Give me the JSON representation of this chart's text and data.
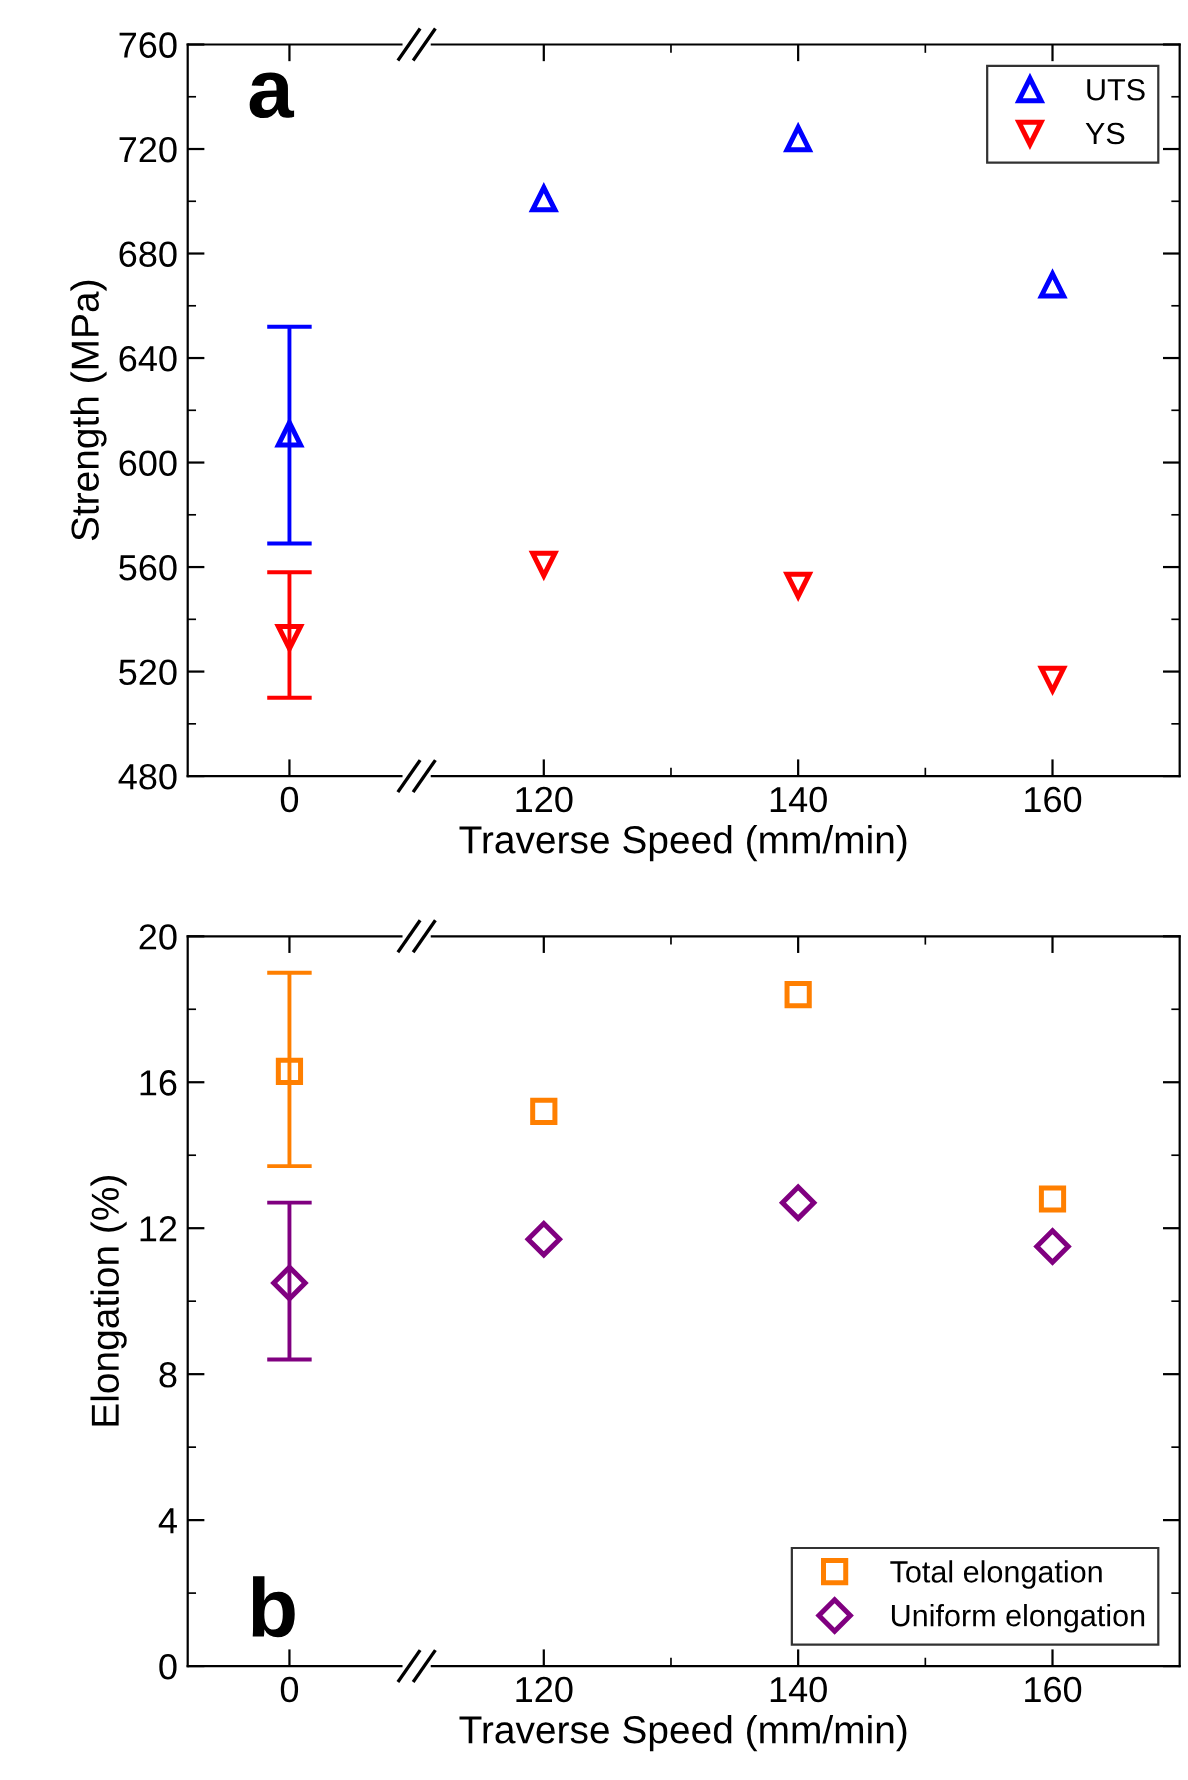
{
  "chart_data": [
    {
      "type": "scatter",
      "xlabel": "Traverse Speed (mm/min)",
      "ylabel": "Strength (MPa)",
      "categories": [
        "0",
        "120",
        "140",
        "160"
      ],
      "ylim": [
        480,
        760
      ],
      "yticks": [
        480,
        520,
        560,
        600,
        640,
        680,
        720,
        760
      ],
      "legend": "top right",
      "annotations": [
        "a"
      ],
      "series": [
        {
          "name": "UTS",
          "color": "#0000ff",
          "marker": "triangle",
          "values": [
            611,
            701,
            724,
            668
          ],
          "errors": [
            [
              569,
              652
            ],
            null,
            null,
            null
          ]
        },
        {
          "name": "YS",
          "color": "#ff0000",
          "marker": "triangle_down",
          "values": [
            533,
            561,
            553,
            517
          ],
          "errors": [
            [
              510,
              558
            ],
            null,
            null,
            null
          ]
        }
      ]
    },
    {
      "type": "scatter",
      "xlabel": "Traverse Speed (mm/min)",
      "ylabel": "Elongation (%)",
      "categories": [
        "0",
        "120",
        "140",
        "160"
      ],
      "ylim": [
        0,
        20
      ],
      "yticks": [
        0,
        4,
        8,
        12,
        16,
        20
      ],
      "legend": "bottom right",
      "annotations": [
        "b"
      ],
      "series": [
        {
          "name": "Total elongation",
          "color": "#ff7f00",
          "marker": "square",
          "values": [
            16.3,
            15.2,
            18.4,
            12.8
          ],
          "errors": [
            [
              13.7,
              19.0
            ],
            null,
            null,
            null
          ]
        },
        {
          "name": "Uniform elongation",
          "color": "#800080",
          "marker": "diamond",
          "values": [
            10.5,
            11.7,
            12.7,
            11.5
          ],
          "errors": [
            [
              8.4,
              12.7
            ],
            null,
            null,
            null
          ]
        }
      ]
    }
  ]
}
